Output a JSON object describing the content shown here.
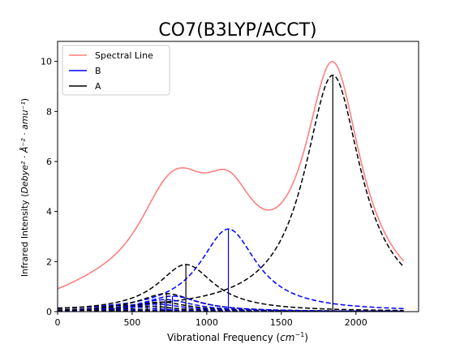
{
  "chart_data": {
    "type": "line",
    "title": "CO7(B3LYP/ACCT)",
    "xlabel_main": "Vibrational Frequency (",
    "xlabel_unit": "cm",
    "xlabel_exp": "−1",
    "xlabel_close": ")",
    "ylabel_main": "Infrared Intensity (",
    "ylabel_unit": "Debye² · Å⁻² · amu⁻¹",
    "ylabel_close": ")",
    "xlim": [
      0,
      2420
    ],
    "ylim": [
      0,
      10.8
    ],
    "xticks": [
      0,
      500,
      1000,
      1500,
      2000
    ],
    "yticks": [
      0,
      2,
      4,
      6,
      8,
      10
    ],
    "grid": false,
    "legend_position": "top-left",
    "legend": [
      {
        "label": "Spectral Line",
        "color": "#ff7f7f",
        "style": "solid"
      },
      {
        "label": "B",
        "color": "#0000ff",
        "style": "solid"
      },
      {
        "label": "A",
        "color": "#000000",
        "style": "solid"
      }
    ],
    "x_range": [
      0,
      2320
    ],
    "hwhm": 230,
    "spectral_line": {
      "name": "Spectral Line",
      "color": "#ff7f7f"
    },
    "peaks": [
      {
        "sym": "A",
        "freq": 1845,
        "intensity": 9.45,
        "color": "#000000"
      },
      {
        "sym": "B",
        "freq": 1145,
        "intensity": 3.3,
        "color": "#0000ff"
      },
      {
        "sym": "A",
        "freq": 860,
        "intensity": 1.88,
        "color": "#000000"
      },
      {
        "sym": "A",
        "freq": 730,
        "intensity": 0.72,
        "color": "#000000"
      },
      {
        "sym": "B",
        "freq": 770,
        "intensity": 0.62,
        "color": "#0000ff"
      },
      {
        "sym": "B",
        "freq": 720,
        "intensity": 0.48,
        "color": "#0000ff"
      },
      {
        "sym": "A",
        "freq": 690,
        "intensity": 0.38,
        "color": "#000000"
      },
      {
        "sym": "B",
        "freq": 660,
        "intensity": 0.3,
        "color": "#0000ff"
      },
      {
        "sym": "A",
        "freq": 600,
        "intensity": 0.22,
        "color": "#000000"
      },
      {
        "sym": "B",
        "freq": 500,
        "intensity": 0.18,
        "color": "#0000ff"
      },
      {
        "sym": "A",
        "freq": 380,
        "intensity": 0.14,
        "color": "#000000"
      },
      {
        "sym": "B",
        "freq": 300,
        "intensity": 0.11,
        "color": "#0000ff"
      },
      {
        "sym": "A",
        "freq": 220,
        "intensity": 0.09,
        "color": "#000000"
      },
      {
        "sym": "B",
        "freq": 150,
        "intensity": 0.07,
        "color": "#0000ff"
      },
      {
        "sym": "A",
        "freq": 100,
        "intensity": 0.06,
        "color": "#000000"
      }
    ]
  }
}
